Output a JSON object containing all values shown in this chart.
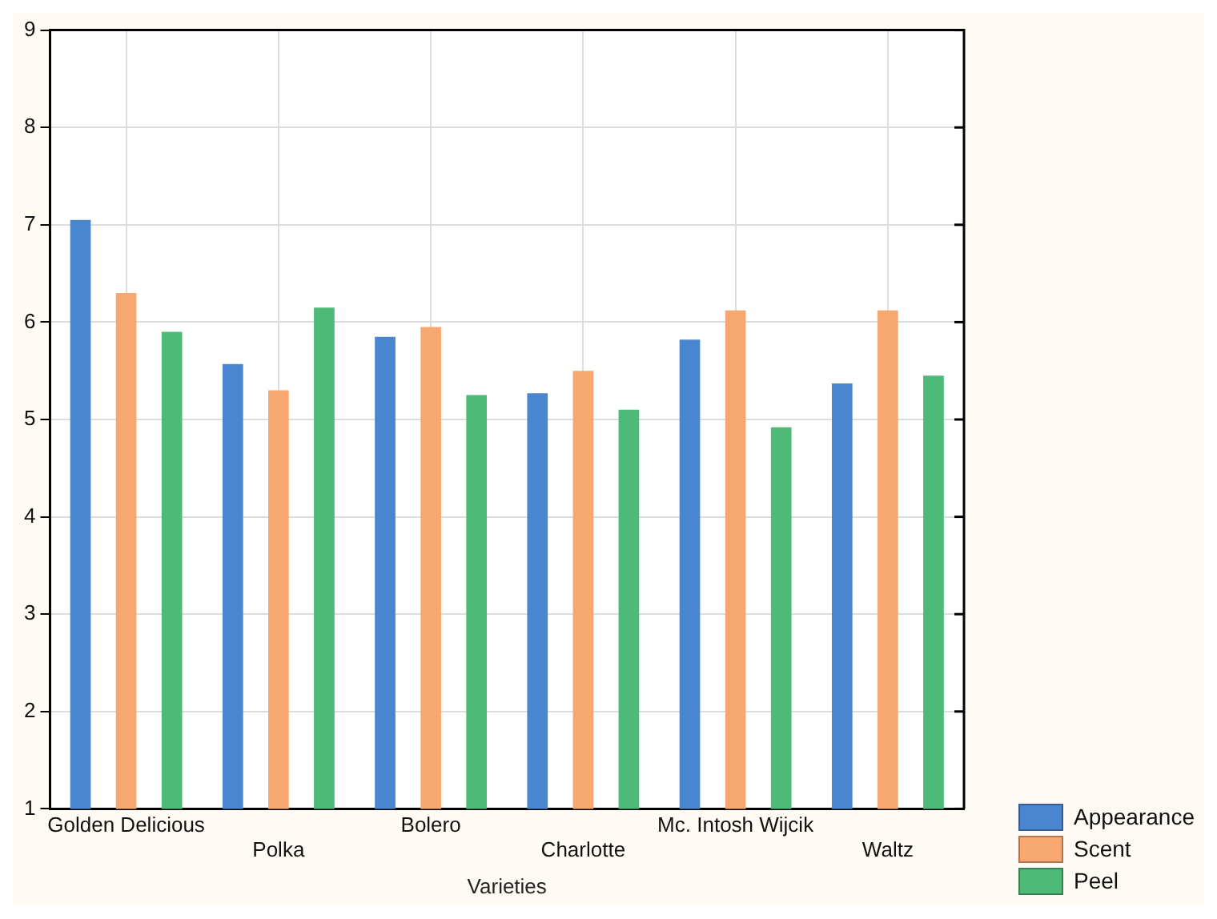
{
  "chart_data": {
    "type": "bar",
    "xlabel": "Varieties",
    "categories": [
      "Golden Delicious",
      "Polka",
      "Bolero",
      "Charlotte",
      "Mc. Intosh Wijcik",
      "Waltz"
    ],
    "series": [
      {
        "name": "Appearance",
        "color": "#4a86cf",
        "values": [
          7.05,
          5.57,
          5.85,
          5.27,
          5.82,
          5.37
        ]
      },
      {
        "name": "Scent",
        "color": "#f7a870",
        "values": [
          6.3,
          5.3,
          5.95,
          5.5,
          6.12,
          6.12
        ]
      },
      {
        "name": "Peel",
        "color": "#4dba78",
        "values": [
          5.9,
          6.15,
          5.25,
          5.1,
          4.92,
          5.45
        ]
      }
    ],
    "ylim": [
      1,
      9
    ],
    "yticks": [
      1,
      2,
      3,
      4,
      5,
      6,
      7,
      8,
      9
    ],
    "grid": true,
    "legend": "bottom right"
  }
}
